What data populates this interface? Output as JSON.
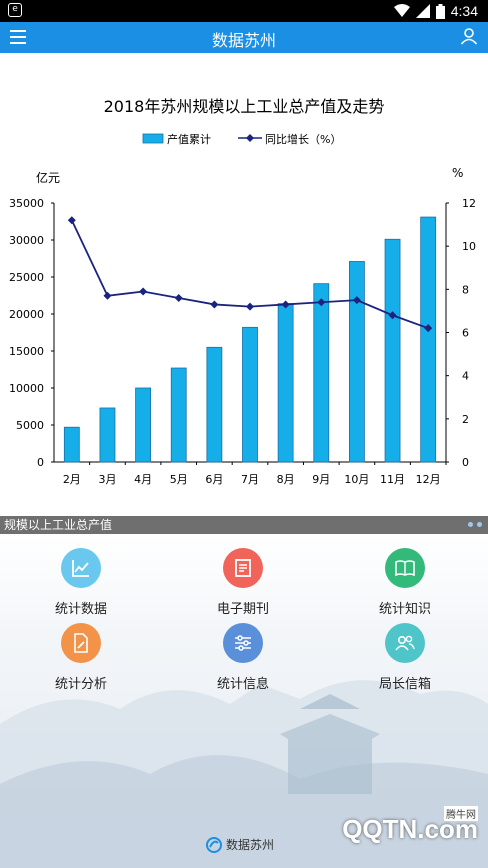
{
  "status": {
    "time": "4:34"
  },
  "app_bar": {
    "title": "数据苏州"
  },
  "chart_data": {
    "type": "bar",
    "title": "2018年苏州规模以上工业总产值及走势",
    "categories": [
      "2月",
      "3月",
      "4月",
      "5月",
      "6月",
      "7月",
      "8月",
      "9月",
      "10月",
      "11月",
      "12月"
    ],
    "series": [
      {
        "name": "产值累计",
        "type": "bar",
        "axis": "left",
        "values": [
          4700,
          7300,
          10000,
          12700,
          15500,
          18200,
          21400,
          24100,
          27100,
          30100,
          33100
        ]
      },
      {
        "name": "同比增长（%）",
        "type": "line",
        "axis": "right",
        "values": [
          11.2,
          7.7,
          7.9,
          7.6,
          7.3,
          7.2,
          7.3,
          7.4,
          7.5,
          6.8,
          6.2
        ]
      }
    ],
    "ylabel_left": "亿元",
    "ylabel_right": "%",
    "ylim_left": [
      0,
      35000
    ],
    "ylim_right": [
      0,
      12
    ],
    "yticks_left": [
      "0",
      "5000",
      "10000",
      "15000",
      "20000",
      "25000",
      "30000",
      "35000"
    ],
    "yticks_right": [
      "0",
      "2",
      "4",
      "6",
      "8",
      "10",
      "12"
    ],
    "legend": "top-center",
    "colors": {
      "bar": "#16aee8",
      "line": "#1a237e"
    }
  },
  "caption": "规模以上工业总产值",
  "menu": [
    {
      "label": "统计数据",
      "icon": "chart-line-icon",
      "color": "#6ac7ee"
    },
    {
      "label": "电子期刊",
      "icon": "newspaper-icon",
      "color": "#f0645a"
    },
    {
      "label": "统计知识",
      "icon": "book-icon",
      "color": "#33b97a"
    },
    {
      "label": "统计分析",
      "icon": "edit-doc-icon",
      "color": "#f39249"
    },
    {
      "label": "统计信息",
      "icon": "sliders-icon",
      "color": "#5a8fd9"
    },
    {
      "label": "局长信箱",
      "icon": "users-icon",
      "color": "#4fc5c9"
    }
  ],
  "footer": {
    "brand": "数据苏州",
    "watermark": "QQTN.com",
    "watermark_small": "腾牛网"
  }
}
